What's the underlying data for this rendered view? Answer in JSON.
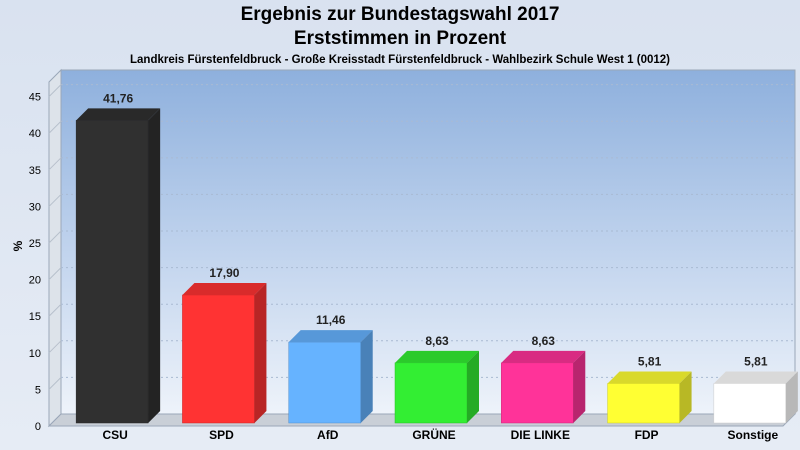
{
  "chart_data": {
    "type": "bar",
    "title": "Ergebnis zur Bundestagswahl 2017",
    "subtitle": "Erststimmen in Prozent",
    "caption": "Landkreis Fürstenfeldbruck - Große Kreisstadt Fürstenfeldbruck - Wahlbezirk Schule West 1 (0012)",
    "xlabel": "",
    "ylabel": "%",
    "ylim": [
      0,
      47
    ],
    "yticks": [
      0,
      5,
      10,
      15,
      20,
      25,
      30,
      35,
      40,
      45
    ],
    "categories": [
      "CSU",
      "SPD",
      "AfD",
      "GRÜNE",
      "DIE LINKE",
      "FDP",
      "Sonstige"
    ],
    "values": [
      41.76,
      17.9,
      11.46,
      8.63,
      8.63,
      5.81,
      5.81
    ],
    "value_labels": [
      "41,76",
      "17,90",
      "11,46",
      "8,63",
      "8,63",
      "5,81",
      "5,81"
    ],
    "colors": [
      "#303030",
      "#ff3333",
      "#66b3ff",
      "#33ee33",
      "#ff3399",
      "#ffff33",
      "#ffffff"
    ],
    "grid": true
  }
}
